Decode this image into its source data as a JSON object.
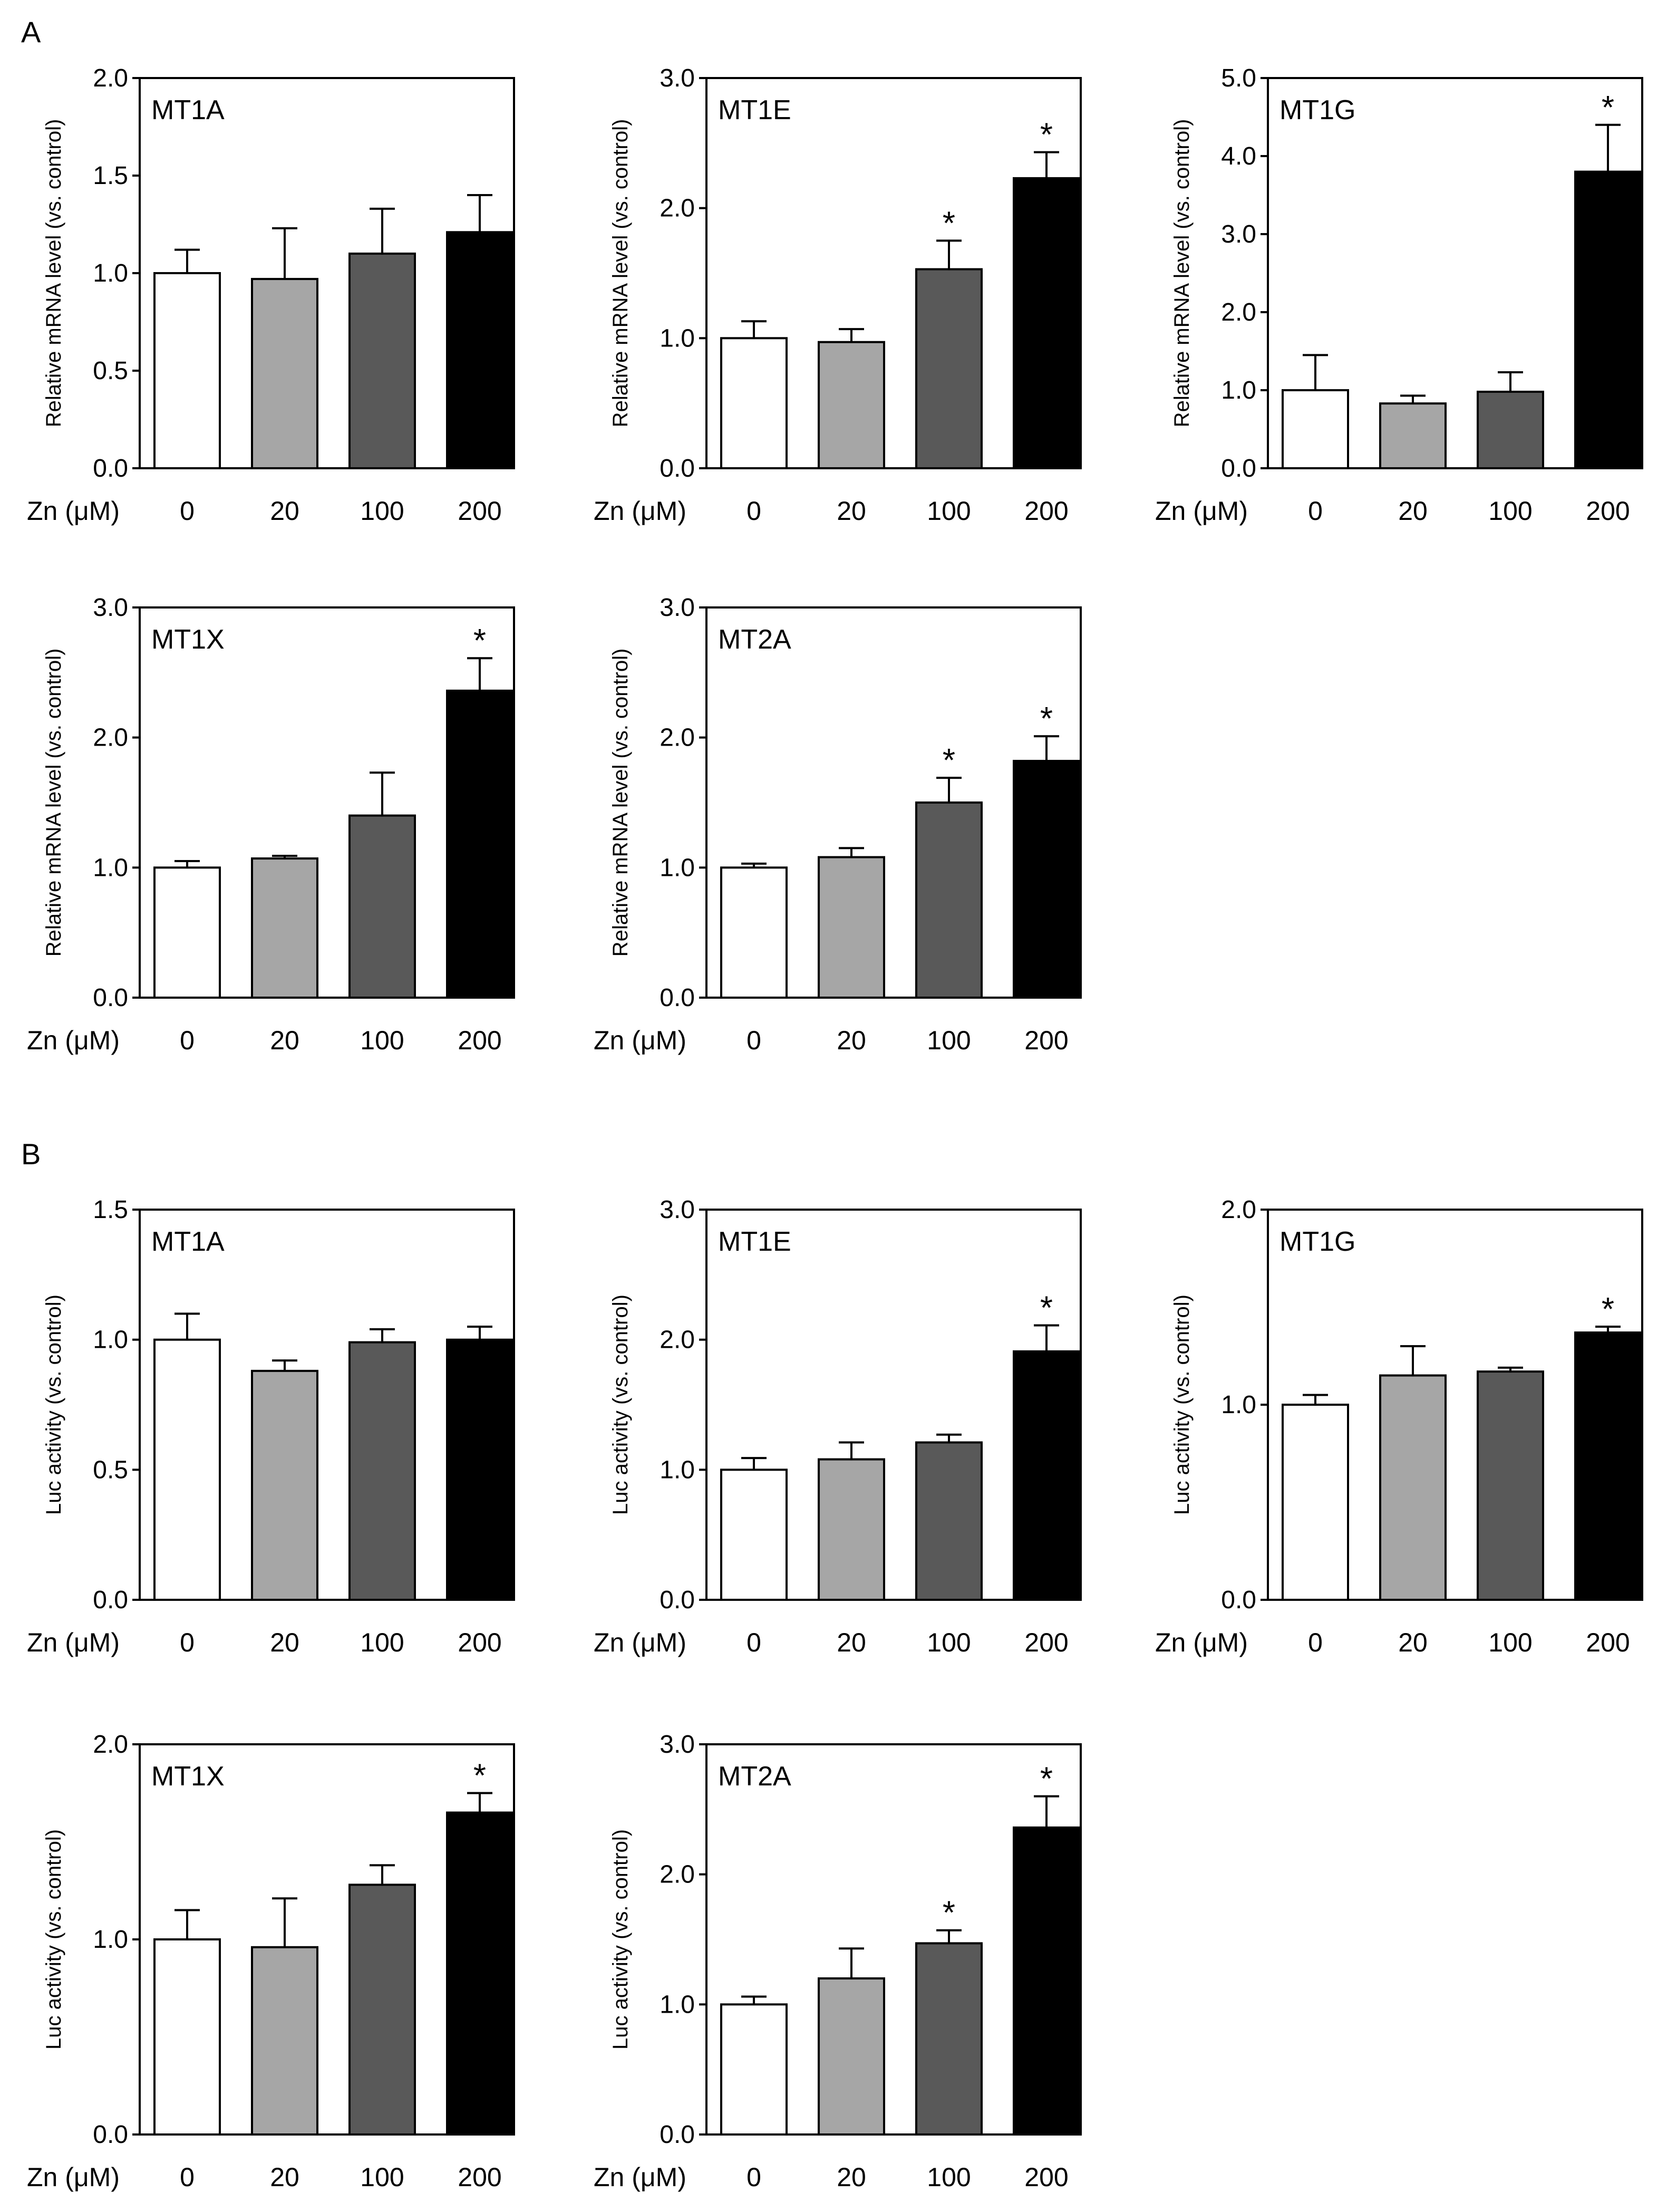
{
  "figure": {
    "panels": [
      {
        "label": "A"
      },
      {
        "label": "B"
      }
    ]
  },
  "colors": {
    "bars": [
      "#ffffff",
      "#a6a6a6",
      "#595959",
      "#000000"
    ],
    "axis": "#000000"
  },
  "chart_data": [
    {
      "type": "bar",
      "panel": "A",
      "title": "MT1A",
      "ylabel": "Relative mRNA level (vs. control)",
      "xlabel": "Zn (μM)",
      "categories": [
        "0",
        "20",
        "100",
        "200"
      ],
      "values": [
        1.0,
        0.97,
        1.1,
        1.21
      ],
      "errors": [
        0.12,
        0.26,
        0.23,
        0.19
      ],
      "significant": [
        false,
        false,
        false,
        false
      ],
      "ylim": [
        0,
        2.0
      ],
      "yticks": [
        "0.0",
        "0.5",
        "1.0",
        "1.5",
        "2.0"
      ]
    },
    {
      "type": "bar",
      "panel": "A",
      "title": "MT1E",
      "ylabel": "Relative mRNA level (vs. control)",
      "xlabel": "Zn (μM)",
      "categories": [
        "0",
        "20",
        "100",
        "200"
      ],
      "values": [
        1.0,
        0.97,
        1.53,
        2.23
      ],
      "errors": [
        0.13,
        0.1,
        0.22,
        0.2
      ],
      "significant": [
        false,
        false,
        true,
        true
      ],
      "ylim": [
        0,
        3.0
      ],
      "yticks": [
        "0.0",
        "1.0",
        "2.0",
        "3.0"
      ]
    },
    {
      "type": "bar",
      "panel": "A",
      "title": "MT1G",
      "ylabel": "Relative mRNA level (vs. control)",
      "xlabel": "Zn (μM)",
      "categories": [
        "0",
        "20",
        "100",
        "200"
      ],
      "values": [
        1.0,
        0.83,
        0.98,
        3.8
      ],
      "errors": [
        0.45,
        0.1,
        0.25,
        0.6
      ],
      "significant": [
        false,
        false,
        false,
        true
      ],
      "ylim": [
        0,
        5.0
      ],
      "yticks": [
        "0.0",
        "1.0",
        "2.0",
        "3.0",
        "4.0",
        "5.0"
      ]
    },
    {
      "type": "bar",
      "panel": "A",
      "title": "MT1X",
      "ylabel": "Relative mRNA level (vs. control)",
      "xlabel": "Zn (μM)",
      "categories": [
        "0",
        "20",
        "100",
        "200"
      ],
      "values": [
        1.0,
        1.07,
        1.4,
        2.36
      ],
      "errors": [
        0.05,
        0.02,
        0.33,
        0.25
      ],
      "significant": [
        false,
        false,
        false,
        true
      ],
      "ylim": [
        0,
        3.0
      ],
      "yticks": [
        "0.0",
        "1.0",
        "2.0",
        "3.0"
      ]
    },
    {
      "type": "bar",
      "panel": "A",
      "title": "MT2A",
      "ylabel": "Relative mRNA level (vs. control)",
      "xlabel": "Zn (μM)",
      "categories": [
        "0",
        "20",
        "100",
        "200"
      ],
      "values": [
        1.0,
        1.08,
        1.5,
        1.82
      ],
      "errors": [
        0.03,
        0.07,
        0.19,
        0.19
      ],
      "significant": [
        false,
        false,
        true,
        true
      ],
      "ylim": [
        0,
        3.0
      ],
      "yticks": [
        "0.0",
        "1.0",
        "2.0",
        "3.0"
      ]
    },
    {
      "type": "bar",
      "panel": "B",
      "title": "MT1A",
      "ylabel": "Luc activity (vs. control)",
      "xlabel": "Zn (μM)",
      "categories": [
        "0",
        "20",
        "100",
        "200"
      ],
      "values": [
        1.0,
        0.88,
        0.99,
        1.0
      ],
      "errors": [
        0.1,
        0.04,
        0.05,
        0.05
      ],
      "significant": [
        false,
        false,
        false,
        false
      ],
      "ylim": [
        0,
        1.5
      ],
      "yticks": [
        "0.0",
        "0.5",
        "1.0",
        "1.5"
      ]
    },
    {
      "type": "bar",
      "panel": "B",
      "title": "MT1E",
      "ylabel": "Luc activity (vs. control)",
      "xlabel": "Zn (μM)",
      "categories": [
        "0",
        "20",
        "100",
        "200"
      ],
      "values": [
        1.0,
        1.08,
        1.21,
        1.91
      ],
      "errors": [
        0.09,
        0.13,
        0.06,
        0.2
      ],
      "significant": [
        false,
        false,
        false,
        true
      ],
      "ylim": [
        0,
        3.0
      ],
      "yticks": [
        "0.0",
        "1.0",
        "2.0",
        "3.0"
      ]
    },
    {
      "type": "bar",
      "panel": "B",
      "title": "MT1G",
      "ylabel": "Luc activity (vs. control)",
      "xlabel": "Zn (μM)",
      "categories": [
        "0",
        "20",
        "100",
        "200"
      ],
      "values": [
        1.0,
        1.15,
        1.17,
        1.37
      ],
      "errors": [
        0.05,
        0.15,
        0.02,
        0.03
      ],
      "significant": [
        false,
        false,
        false,
        true
      ],
      "ylim": [
        0,
        2.0
      ],
      "yticks": [
        "0.0",
        "1.0",
        "2.0"
      ]
    },
    {
      "type": "bar",
      "panel": "B",
      "title": "MT1X",
      "ylabel": "Luc activity (vs. control)",
      "xlabel": "Zn (μM)",
      "categories": [
        "0",
        "20",
        "100",
        "200"
      ],
      "values": [
        1.0,
        0.96,
        1.28,
        1.65
      ],
      "errors": [
        0.15,
        0.25,
        0.1,
        0.1
      ],
      "significant": [
        false,
        false,
        false,
        true
      ],
      "ylim": [
        0,
        2.0
      ],
      "yticks": [
        "0.0",
        "1.0",
        "2.0"
      ]
    },
    {
      "type": "bar",
      "panel": "B",
      "title": "MT2A",
      "ylabel": "Luc activity (vs. control)",
      "xlabel": "Zn (μM)",
      "categories": [
        "0",
        "20",
        "100",
        "200"
      ],
      "values": [
        1.0,
        1.2,
        1.47,
        2.36
      ],
      "errors": [
        0.06,
        0.23,
        0.1,
        0.24
      ],
      "significant": [
        false,
        false,
        true,
        true
      ],
      "ylim": [
        0,
        3.0
      ],
      "yticks": [
        "0.0",
        "1.0",
        "2.0",
        "3.0"
      ]
    }
  ]
}
